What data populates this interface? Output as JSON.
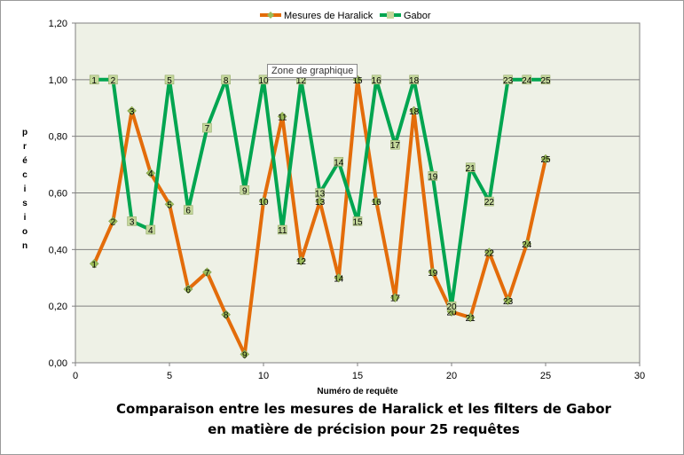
{
  "tooltip": "Zone de graphique",
  "caption": {
    "line1": "Comparaison entre les mesures de Haralick et les filters de Gabor",
    "line2": "en matière de précision pour 25 requêtes"
  },
  "chart_data": {
    "type": "line",
    "xlabel": "Numéro de requête",
    "ylabel": "précision",
    "xlim": [
      0,
      30
    ],
    "ylim": [
      0,
      1.2
    ],
    "x_ticks": [
      "0",
      "5",
      "10",
      "15",
      "20",
      "25",
      "30"
    ],
    "y_ticks": [
      "0,00",
      "0,20",
      "0,40",
      "0,60",
      "0,80",
      "1,00",
      "1,20"
    ],
    "grid": "horizontal",
    "legend_position": "top",
    "plot_background": "#eef1e6",
    "series": [
      {
        "name": "Mesures de Haralick",
        "color": "#e36c0a",
        "marker": "diamond",
        "marker_color": "#9bbb59",
        "x": [
          1,
          2,
          3,
          4,
          5,
          6,
          7,
          8,
          9,
          10,
          11,
          12,
          13,
          14,
          15,
          16,
          17,
          18,
          19,
          20,
          21,
          22,
          23,
          24,
          25
        ],
        "y": [
          0.35,
          0.5,
          0.89,
          0.67,
          0.56,
          0.26,
          0.32,
          0.17,
          0.03,
          0.57,
          0.87,
          0.36,
          0.57,
          0.3,
          1.0,
          0.57,
          0.23,
          0.89,
          0.32,
          0.18,
          0.16,
          0.39,
          0.22,
          0.42,
          0.72
        ],
        "point_labels": [
          "1",
          "2",
          "3",
          "4",
          "5",
          "6",
          "7",
          "8",
          "9",
          "10",
          "11",
          "12",
          "13",
          "14",
          "15",
          "16",
          "17",
          "18",
          "19",
          "20",
          "21",
          "22",
          "23",
          "24",
          "25"
        ]
      },
      {
        "name": "Gabor",
        "color": "#00a550",
        "marker": "square",
        "marker_color": "#c4d79b",
        "x": [
          1,
          2,
          3,
          4,
          5,
          6,
          7,
          8,
          9,
          10,
          11,
          12,
          13,
          14,
          15,
          16,
          17,
          18,
          19,
          20,
          21,
          22,
          23,
          24,
          25
        ],
        "y": [
          1.0,
          1.0,
          0.5,
          0.47,
          1.0,
          0.54,
          0.83,
          1.0,
          0.61,
          1.0,
          0.47,
          1.0,
          0.6,
          0.71,
          0.5,
          1.0,
          0.77,
          1.0,
          0.66,
          0.2,
          0.69,
          0.57,
          1.0,
          1.0,
          1.0
        ],
        "point_labels": [
          "1",
          "2",
          "3",
          "4",
          "5",
          "6",
          "7",
          "8",
          "9",
          "10",
          "11",
          "12",
          "13",
          "14",
          "15",
          "16",
          "17",
          "18",
          "19",
          "20",
          "21",
          "22",
          "23",
          "24",
          "25"
        ]
      }
    ]
  }
}
